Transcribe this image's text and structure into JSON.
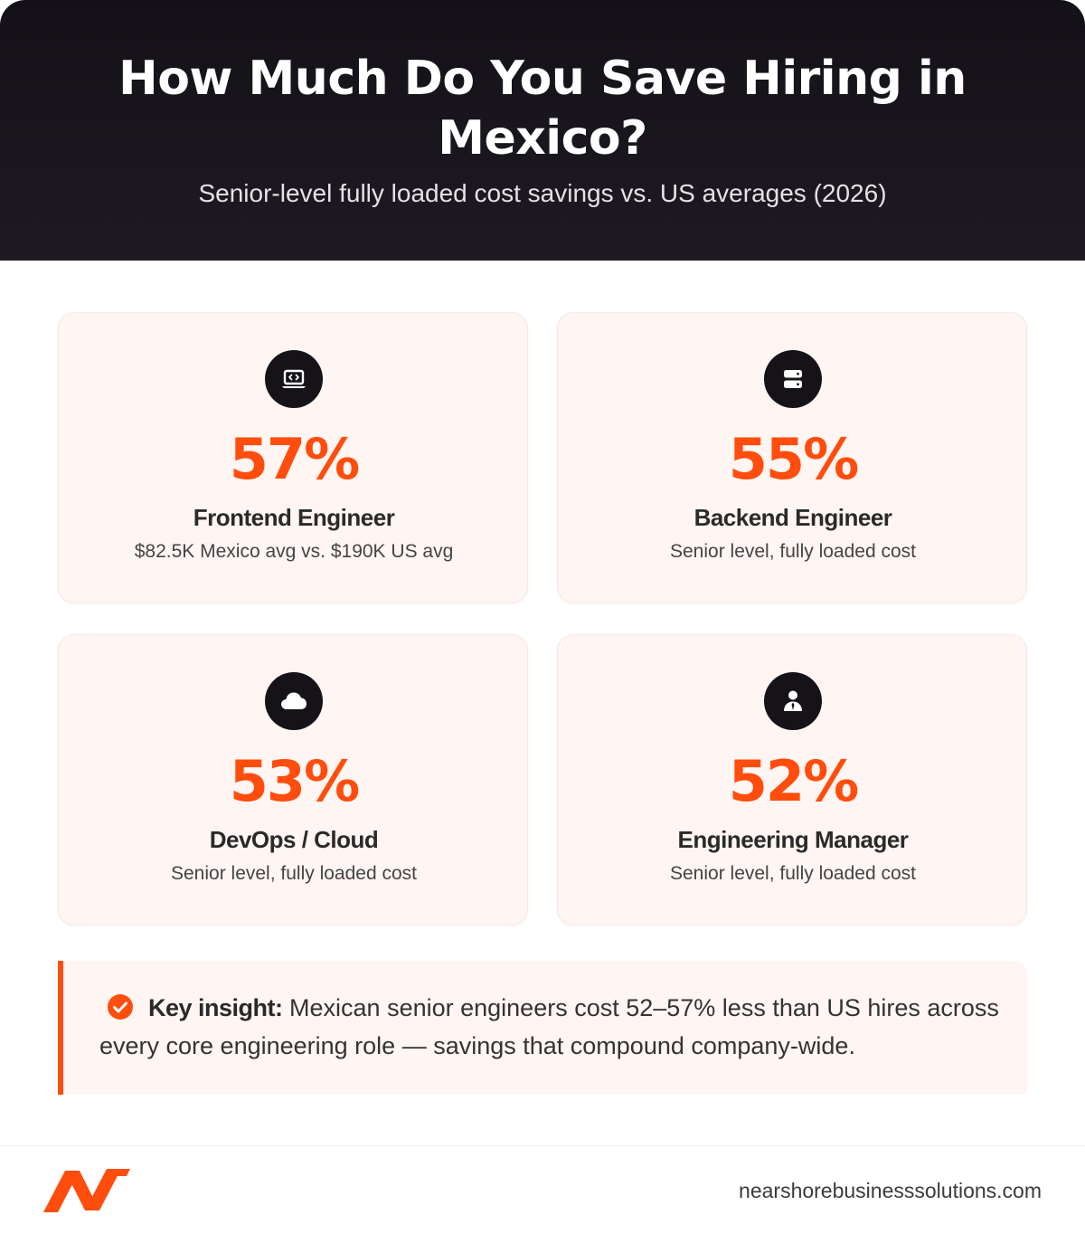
{
  "header": {
    "title": "How Much Do You Save Hiring in Mexico?",
    "subtitle": "Senior-level fully loaded cost savings vs. US averages (2026)"
  },
  "cards": [
    {
      "icon": "laptop-code-icon",
      "percent": "57%",
      "role": "Frontend Engineer",
      "detail": "$82.5K Mexico avg vs. $190K US avg"
    },
    {
      "icon": "server-icon",
      "percent": "55%",
      "role": "Backend Engineer",
      "detail": "Senior level, fully loaded cost"
    },
    {
      "icon": "cloud-icon",
      "percent": "53%",
      "role": "DevOps / Cloud",
      "detail": "Senior level, fully loaded cost"
    },
    {
      "icon": "user-tie-icon",
      "percent": "52%",
      "role": "Engineering Manager",
      "detail": "Senior level, fully loaded cost"
    }
  ],
  "insight": {
    "icon": "check-circle-icon",
    "label": "Key insight:",
    "text": "Mexican senior engineers cost 52–57% less than US hires across every core engineering role — savings that compound company-wide."
  },
  "footer": {
    "website": "nearshorebusinesssolutions.com"
  },
  "colors": {
    "accent": "#ff4d0d",
    "header_bg": "#131117",
    "card_bg": "#fff5f3",
    "icon_bg": "#151317"
  }
}
